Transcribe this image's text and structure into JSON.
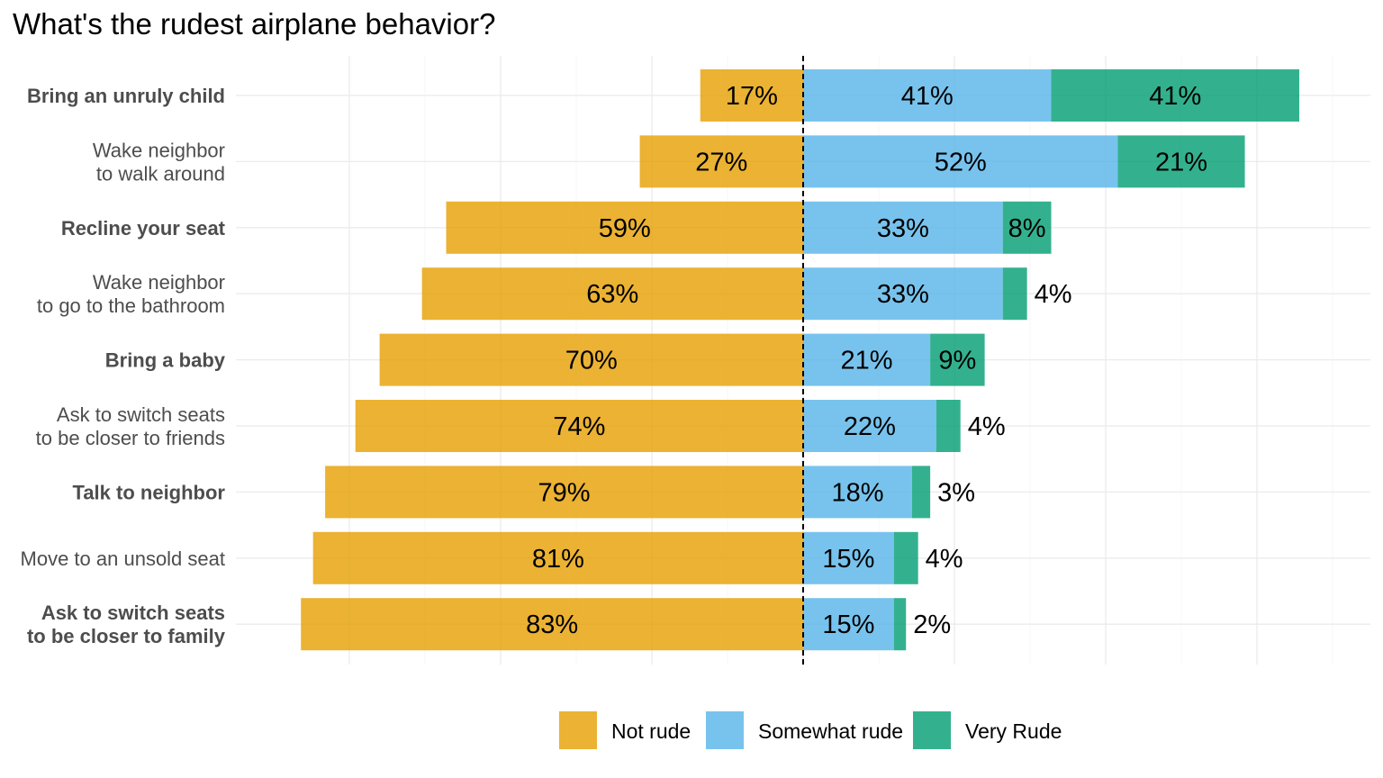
{
  "chart_data": {
    "type": "bar",
    "orientation": "horizontal",
    "layout": "diverging-stacked",
    "title": "What's the rudest airplane behavior?",
    "xlabel": "",
    "ylabel": "",
    "grid": true,
    "legend_position": "bottom",
    "categories": [
      {
        "label": "Bring an unruly child",
        "bold": true
      },
      {
        "label": "Wake neighbor \nto walk around",
        "bold": false
      },
      {
        "label": "Recline your seat",
        "bold": true
      },
      {
        "label": "Wake neighbor \nto go to the bathroom",
        "bold": false
      },
      {
        "label": "Bring a baby",
        "bold": true
      },
      {
        "label": "Ask to switch seats \nto be closer to friends",
        "bold": false
      },
      {
        "label": "Talk to neighbor",
        "bold": true
      },
      {
        "label": "Move to an unsold seat",
        "bold": false
      },
      {
        "label": "Ask to switch seats \nto be closer to family",
        "bold": true
      }
    ],
    "series": [
      {
        "name": "Not rude",
        "color": "#E69F00",
        "side": "left",
        "values": [
          17,
          27,
          59,
          63,
          70,
          74,
          79,
          81,
          83
        ],
        "labels": [
          "17%",
          "27%",
          "59%",
          "63%",
          "70%",
          "74%",
          "79%",
          "81%",
          "83%"
        ]
      },
      {
        "name": "Somewhat rude",
        "color": "#56B4E9",
        "side": "right",
        "values": [
          41,
          52,
          33,
          33,
          21,
          22,
          18,
          15,
          15
        ],
        "labels": [
          "41%",
          "52%",
          "33%",
          "33%",
          "21%",
          "22%",
          "18%",
          "15%",
          "15%"
        ]
      },
      {
        "name": "Very Rude",
        "color": "#009E73",
        "side": "right",
        "values": [
          41,
          21,
          8,
          4,
          9,
          4,
          3,
          4,
          2
        ],
        "labels": [
          "41%",
          "21%",
          "8%",
          "4%",
          "9%",
          "4%",
          "3%",
          "4%",
          "2%"
        ]
      }
    ]
  }
}
